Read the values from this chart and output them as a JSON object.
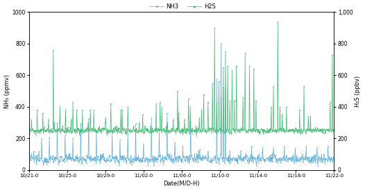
{
  "title": "",
  "xlabel": "Date(M/D-H)",
  "ylabel_left": "NH₃ (ppmv)",
  "ylabel_right": "H₂S (ppbv)",
  "x_tick_labels": [
    "10/21-0",
    "10/25-0",
    "10/29-0",
    "11/02-0",
    "11/06-0",
    "11/10-0",
    "11/14-0",
    "11/18-0",
    "11/22-0"
  ],
  "ylim_left": [
    0,
    1000
  ],
  "ylim_right": [
    0,
    1000
  ],
  "yticks_left": [
    0,
    200,
    400,
    600,
    800,
    1000
  ],
  "ytick_labels_right": [
    "0",
    "200",
    "400",
    "600",
    "800",
    "1,000"
  ],
  "nh3_color": "#5badda",
  "h2s_color": "#3ab86e",
  "legend_labels": [
    "NH3",
    "H2S"
  ],
  "background_color": "#ffffff",
  "n_points": 700,
  "figsize": [
    5.26,
    2.75
  ],
  "dpi": 100
}
